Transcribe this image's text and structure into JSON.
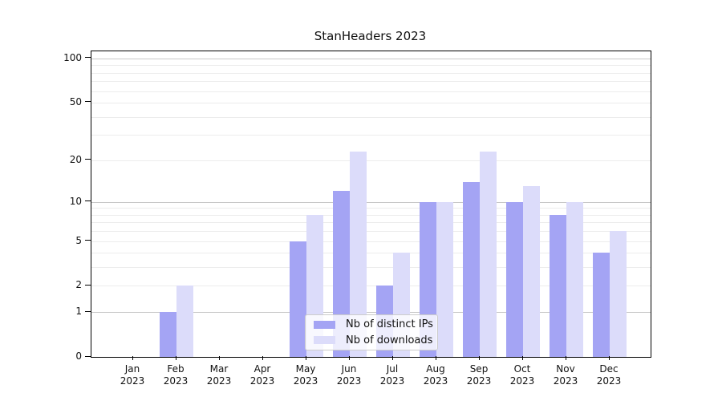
{
  "title": "StanHeaders 2023",
  "colors": {
    "ips": "#a4a4f4",
    "downloads": "#dcdcfa",
    "grid_major": "#c8c8c8",
    "grid_minor": "#ececec",
    "axis": "#000000",
    "text": "#111111"
  },
  "legend": {
    "items": [
      {
        "label": "Nb of distinct IPs",
        "key": "ips"
      },
      {
        "label": "Nb of downloads",
        "key": "downloads"
      }
    ]
  },
  "chart_data": {
    "type": "bar",
    "title": "StanHeaders 2023",
    "categories": [
      "Jan 2023",
      "Feb 2023",
      "Mar 2023",
      "Apr 2023",
      "May 2023",
      "Jun 2023",
      "Jul 2023",
      "Aug 2023",
      "Sep 2023",
      "Oct 2023",
      "Nov 2023",
      "Dec 2023"
    ],
    "series": [
      {
        "name": "Nb of distinct IPs",
        "color": "#a4a4f4",
        "values": [
          0,
          1,
          0,
          0,
          5,
          12,
          2,
          10,
          14,
          10,
          8,
          4
        ]
      },
      {
        "name": "Nb of downloads",
        "color": "#dcdcfa",
        "values": [
          0,
          2,
          0,
          0,
          8,
          23,
          4,
          10,
          23,
          13,
          10,
          6
        ]
      }
    ],
    "xlabel": "",
    "ylabel": "",
    "yscale": "log1p",
    "ylim": [
      0,
      110
    ],
    "yticks": [
      0,
      1,
      2,
      5,
      10,
      20,
      50,
      100
    ],
    "ytick_major_gridlines": [
      1,
      10,
      100
    ],
    "ytick_minor_gridlines": [
      2,
      3,
      4,
      5,
      6,
      7,
      8,
      9,
      20,
      30,
      40,
      50,
      60,
      70,
      80,
      90
    ],
    "grid": true,
    "legend_position": "lower center"
  }
}
